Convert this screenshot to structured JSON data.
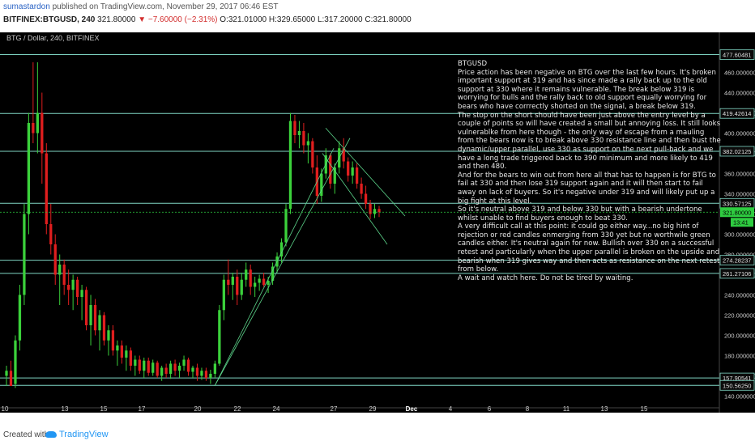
{
  "header": {
    "author": "sumastardon",
    "published_text": "published on TradingView.com, November 29, 2017 06:46 EST",
    "symbol": "BITFINEX:BTGUSD, 240",
    "last": "321.80000",
    "change": "▼ −7.60000 (−2.31%)",
    "ohlc_open": "O:321.01000",
    "ohlc_high": "H:329.65000",
    "ohlc_low": "L:317.20000",
    "ohlc_close": "C:321.80000"
  },
  "chart_title": "BTG / Dollar, 240, BITFINEX",
  "colors": {
    "up": "#3bd13b",
    "down": "#e01e1e",
    "hline": "#7fd6c4",
    "trend": "#5cd48a",
    "price_label": "#2ecc40"
  },
  "chart_data": {
    "type": "candlestick",
    "ylim": [
      130,
      490
    ],
    "x_ticks": [
      "10",
      "13",
      "15",
      "17",
      "20",
      "22",
      "24",
      "27",
      "29",
      "Dec",
      "4",
      "6",
      "8",
      "11",
      "13",
      "15"
    ],
    "y_ticks": [
      "460.000000",
      "440.000000",
      "420.000000",
      "400.000000",
      "380.000000",
      "360.000000",
      "340.000000",
      "320.000000",
      "300.000000",
      "280.000000",
      "260.000000",
      "240.000000",
      "220.000000",
      "200.000000",
      "180.000000",
      "160.000000",
      "140.000000"
    ],
    "y_tick_values": [
      460,
      440,
      420,
      400,
      380,
      360,
      340,
      320,
      300,
      280,
      260,
      240,
      220,
      200,
      180,
      160,
      140
    ],
    "horizontal_levels": [
      {
        "label": "477.60481",
        "value": 477.6
      },
      {
        "label": "419.42614",
        "value": 419.43
      },
      {
        "label": "382.02125",
        "value": 382.02
      },
      {
        "label": "330.57125",
        "value": 330.57
      },
      {
        "label": "274.28237",
        "value": 274.28
      },
      {
        "label": "261.27106",
        "value": 261.27
      },
      {
        "label": "157.90541",
        "value": 157.91
      },
      {
        "label": "150.56250",
        "value": 150.56
      }
    ],
    "last_price_label": "321.80000",
    "countdown": "13:41",
    "candles_approx": [
      [
        160,
        170,
        150,
        165
      ],
      [
        165,
        175,
        150,
        150
      ],
      [
        152,
        200,
        148,
        195
      ],
      [
        195,
        250,
        185,
        240
      ],
      [
        240,
        330,
        230,
        320
      ],
      [
        320,
        420,
        300,
        410
      ],
      [
        410,
        470,
        390,
        400
      ],
      [
        400,
        470,
        380,
        420
      ],
      [
        420,
        440,
        350,
        380
      ],
      [
        380,
        390,
        300,
        310
      ],
      [
        310,
        330,
        280,
        290
      ],
      [
        290,
        300,
        250,
        260
      ],
      [
        260,
        280,
        230,
        270
      ],
      [
        270,
        275,
        240,
        250
      ],
      [
        250,
        265,
        230,
        245
      ],
      [
        245,
        260,
        225,
        255
      ],
      [
        255,
        258,
        230,
        238
      ],
      [
        238,
        250,
        215,
        245
      ],
      [
        245,
        248,
        205,
        210
      ],
      [
        210,
        240,
        190,
        230
      ],
      [
        230,
        236,
        200,
        205
      ],
      [
        205,
        225,
        185,
        220
      ],
      [
        220,
        223,
        190,
        195
      ],
      [
        195,
        210,
        180,
        205
      ],
      [
        205,
        210,
        180,
        185
      ],
      [
        185,
        195,
        170,
        190
      ],
      [
        190,
        195,
        172,
        178
      ],
      [
        178,
        190,
        165,
        185
      ],
      [
        185,
        188,
        165,
        170
      ],
      [
        170,
        180,
        160,
        176
      ],
      [
        176,
        180,
        162,
        165
      ],
      [
        165,
        178,
        158,
        175
      ],
      [
        175,
        178,
        160,
        163
      ],
      [
        163,
        176,
        160,
        173
      ],
      [
        173,
        175,
        158,
        160
      ],
      [
        160,
        170,
        155,
        168
      ],
      [
        168,
        172,
        158,
        162
      ],
      [
        162,
        175,
        157,
        172
      ],
      [
        172,
        176,
        160,
        165
      ],
      [
        165,
        173,
        158,
        170
      ],
      [
        170,
        180,
        165,
        176
      ],
      [
        176,
        178,
        160,
        164
      ],
      [
        164,
        170,
        158,
        168
      ],
      [
        168,
        172,
        155,
        160
      ],
      [
        160,
        168,
        156,
        165
      ],
      [
        165,
        168,
        155,
        158
      ],
      [
        158,
        166,
        152,
        162
      ],
      [
        162,
        175,
        158,
        172
      ],
      [
        172,
        230,
        170,
        225
      ],
      [
        225,
        260,
        215,
        255
      ],
      [
        255,
        275,
        240,
        250
      ],
      [
        250,
        262,
        235,
        258
      ],
      [
        258,
        265,
        230,
        240
      ],
      [
        240,
        262,
        235,
        255
      ],
      [
        255,
        272,
        248,
        265
      ],
      [
        265,
        270,
        240,
        248
      ],
      [
        248,
        258,
        238,
        252
      ],
      [
        252,
        260,
        244,
        256
      ],
      [
        256,
        262,
        248,
        250
      ],
      [
        250,
        258,
        242,
        254
      ],
      [
        254,
        272,
        250,
        268
      ],
      [
        268,
        282,
        262,
        278
      ],
      [
        278,
        296,
        272,
        292
      ],
      [
        292,
        330,
        288,
        325
      ],
      [
        325,
        420,
        320,
        412
      ],
      [
        412,
        418,
        390,
        398
      ],
      [
        398,
        412,
        385,
        402
      ],
      [
        402,
        410,
        380,
        388
      ],
      [
        388,
        400,
        370,
        392
      ],
      [
        392,
        395,
        360,
        366
      ],
      [
        366,
        378,
        330,
        338
      ],
      [
        338,
        365,
        332,
        360
      ],
      [
        360,
        385,
        355,
        378
      ],
      [
        378,
        380,
        345,
        350
      ],
      [
        350,
        370,
        340,
        366
      ],
      [
        366,
        392,
        360,
        385
      ],
      [
        385,
        395,
        365,
        372
      ],
      [
        372,
        376,
        352,
        358
      ],
      [
        358,
        372,
        350,
        366
      ],
      [
        366,
        370,
        345,
        350
      ],
      [
        350,
        356,
        335,
        340
      ],
      [
        340,
        348,
        325,
        330
      ],
      [
        330,
        334,
        315,
        320
      ],
      [
        320,
        330,
        316,
        325
      ],
      [
        325,
        328,
        317,
        321.8
      ]
    ]
  },
  "note": {
    "title": "BTGUSD",
    "paragraphs": [
      "Price action has been negative on BTG over the last few hours. It's broken important support at 319 and has since made a rally back up to the old support at 330 where it remains vulnerable. The break below 319 is worrying for bulls and the rally back to old support equally worrying for bears who have corrrectly shorted on the signal, a break below 319.",
      "The stop on the short should have been just above the entry level by a couple of points so will have created a small but annoying loss. It still looks vulnerablke from here though - the only way of escape from a mauling from the bears now is to break above 330 resistance line and then bust the dynamic/upper parallel, use 330 as support on the next pull-back and we have a long trade triggered back to 390 minimum and more likely to 419 and then 480.",
      "And for the bears to win out from here all that has to happen is for BTG to fail at 330 and then lose 319 support again and it will then start to fail away on lack of buyers. So it's negative under 319 and will likely put up a big fight at this level.",
      "So it's neutral above 319 and below 330 but with a bearish undertone whilst unable to find buyers enough to beat 330.",
      "A very difficult call at this point: it could go either way...no big hint of rejection or red candles enmerging from 330 yet but no worthwile green candles either. It's neutral again for now. Bullish over 330 on a successful retest and particularly when the upper parallel is broken on the upside and bearish when 319 gives way and then acts as resistance on the next retest from below.",
      "A wait and watch here. Do not be tired by waiting."
    ]
  },
  "footer": {
    "created_with": "Created with",
    "brand": "TradingView"
  }
}
